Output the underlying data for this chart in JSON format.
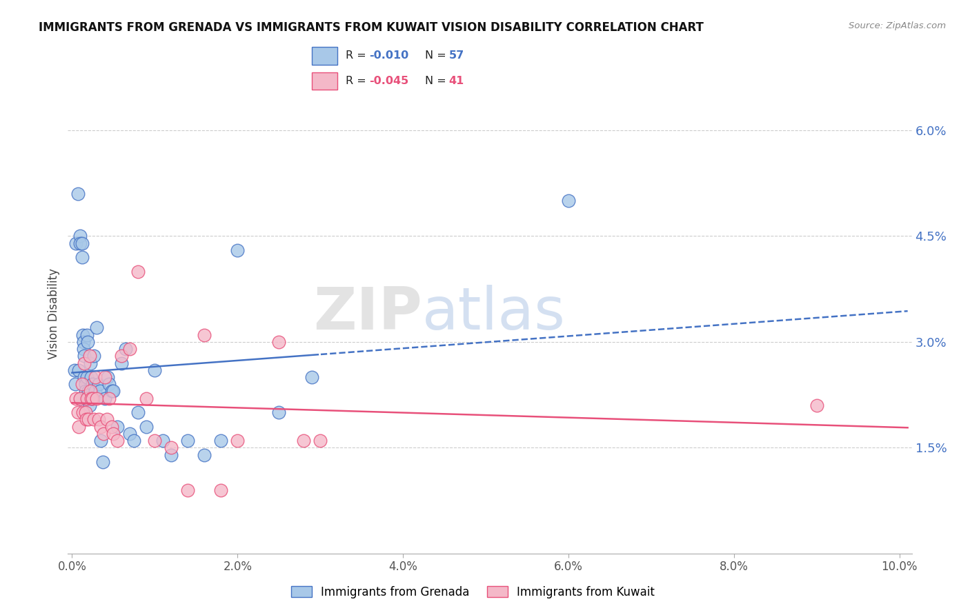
{
  "title": "IMMIGRANTS FROM GRENADA VS IMMIGRANTS FROM KUWAIT VISION DISABILITY CORRELATION CHART",
  "source": "Source: ZipAtlas.com",
  "ylabel": "Vision Disability",
  "xlabel_ticks": [
    "0.0%",
    "2.0%",
    "4.0%",
    "6.0%",
    "8.0%",
    "10.0%"
  ],
  "xlabel_vals": [
    0.0,
    0.02,
    0.04,
    0.06,
    0.08,
    0.1
  ],
  "ylabel_ticks": [
    "1.5%",
    "3.0%",
    "4.5%",
    "6.0%"
  ],
  "ylabel_vals": [
    0.015,
    0.03,
    0.045,
    0.06
  ],
  "xlim": [
    -0.0005,
    0.1015
  ],
  "ylim": [
    0.0,
    0.068
  ],
  "grenada_R": -0.01,
  "grenada_N": 57,
  "kuwait_R": -0.045,
  "kuwait_N": 41,
  "grenada_color": "#a8c8e8",
  "kuwait_color": "#f4b8c8",
  "grenada_line_color": "#4472c4",
  "kuwait_line_color": "#e8507a",
  "watermark_zip": "ZIP",
  "watermark_atlas": "atlas",
  "grenada_x": [
    0.0003,
    0.0004,
    0.0005,
    0.0007,
    0.0008,
    0.001,
    0.001,
    0.001,
    0.0012,
    0.0012,
    0.0013,
    0.0014,
    0.0014,
    0.0015,
    0.0015,
    0.0016,
    0.0016,
    0.0017,
    0.0018,
    0.0018,
    0.0019,
    0.002,
    0.002,
    0.0021,
    0.0022,
    0.0023,
    0.0024,
    0.0025,
    0.0026,
    0.0028,
    0.003,
    0.0032,
    0.0034,
    0.0035,
    0.0037,
    0.004,
    0.0043,
    0.0045,
    0.0048,
    0.005,
    0.0055,
    0.006,
    0.0065,
    0.007,
    0.0075,
    0.008,
    0.009,
    0.01,
    0.011,
    0.012,
    0.014,
    0.016,
    0.018,
    0.02,
    0.025,
    0.029,
    0.06
  ],
  "grenada_y": [
    0.026,
    0.024,
    0.044,
    0.051,
    0.026,
    0.045,
    0.044,
    0.022,
    0.044,
    0.042,
    0.031,
    0.03,
    0.029,
    0.028,
    0.025,
    0.024,
    0.023,
    0.022,
    0.031,
    0.025,
    0.03,
    0.023,
    0.022,
    0.021,
    0.027,
    0.025,
    0.022,
    0.024,
    0.028,
    0.023,
    0.032,
    0.024,
    0.023,
    0.016,
    0.013,
    0.022,
    0.025,
    0.024,
    0.023,
    0.023,
    0.018,
    0.027,
    0.029,
    0.017,
    0.016,
    0.02,
    0.018,
    0.026,
    0.016,
    0.014,
    0.016,
    0.014,
    0.016,
    0.043,
    0.02,
    0.025,
    0.05
  ],
  "kuwait_x": [
    0.0005,
    0.0007,
    0.0008,
    0.001,
    0.0012,
    0.0013,
    0.0015,
    0.0016,
    0.0017,
    0.0018,
    0.002,
    0.0021,
    0.0022,
    0.0023,
    0.0025,
    0.0026,
    0.0028,
    0.003,
    0.0032,
    0.0035,
    0.0038,
    0.004,
    0.0042,
    0.0045,
    0.0048,
    0.005,
    0.0055,
    0.006,
    0.007,
    0.008,
    0.009,
    0.01,
    0.012,
    0.014,
    0.016,
    0.018,
    0.02,
    0.025,
    0.028,
    0.03,
    0.09
  ],
  "kuwait_y": [
    0.022,
    0.02,
    0.018,
    0.022,
    0.024,
    0.02,
    0.027,
    0.02,
    0.019,
    0.022,
    0.019,
    0.028,
    0.023,
    0.022,
    0.022,
    0.019,
    0.025,
    0.022,
    0.019,
    0.018,
    0.017,
    0.025,
    0.019,
    0.022,
    0.018,
    0.017,
    0.016,
    0.028,
    0.029,
    0.04,
    0.022,
    0.016,
    0.015,
    0.009,
    0.031,
    0.009,
    0.016,
    0.03,
    0.016,
    0.016,
    0.021
  ]
}
